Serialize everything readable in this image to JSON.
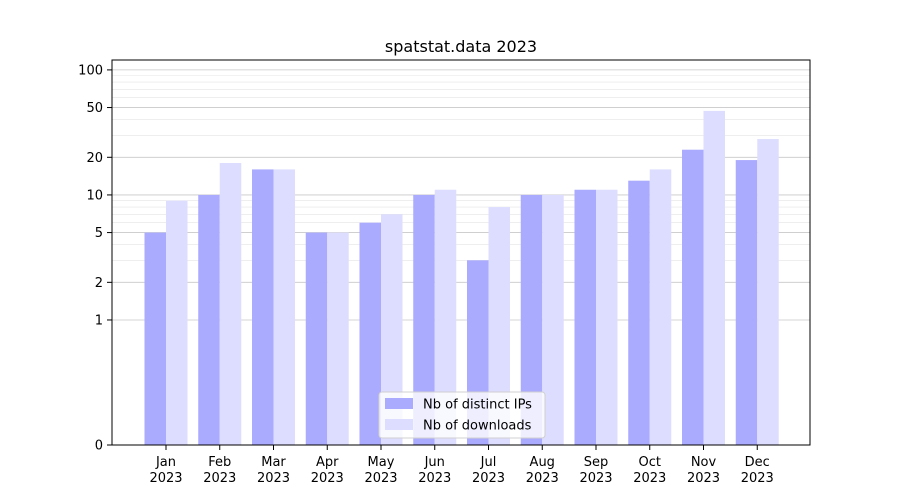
{
  "chart_data": {
    "type": "bar",
    "title": "spatstat.data 2023",
    "xlabel": "",
    "ylabel": "",
    "y_scale": "symlog",
    "ylim": [
      0,
      120
    ],
    "y_ticks": [
      0,
      1,
      2,
      5,
      10,
      20,
      50,
      100
    ],
    "grid": "horizontal",
    "legend_position": "bottom-center",
    "categories": [
      [
        "Jan",
        "2023"
      ],
      [
        "Feb",
        "2023"
      ],
      [
        "Mar",
        "2023"
      ],
      [
        "Apr",
        "2023"
      ],
      [
        "May",
        "2023"
      ],
      [
        "Jun",
        "2023"
      ],
      [
        "Jul",
        "2023"
      ],
      [
        "Aug",
        "2023"
      ],
      [
        "Sep",
        "2023"
      ],
      [
        "Oct",
        "2023"
      ],
      [
        "Nov",
        "2023"
      ],
      [
        "Dec",
        "2023"
      ]
    ],
    "series": [
      {
        "name": "Nb of distinct IPs",
        "color": "#aaaaff",
        "values": [
          5,
          10,
          16,
          5,
          6,
          10,
          3,
          10,
          11,
          13,
          23,
          19
        ]
      },
      {
        "name": "Nb of downloads",
        "color": "#ddddff",
        "values": [
          9,
          18,
          16,
          5,
          7,
          11,
          8,
          10,
          11,
          16,
          47,
          28
        ]
      }
    ]
  }
}
